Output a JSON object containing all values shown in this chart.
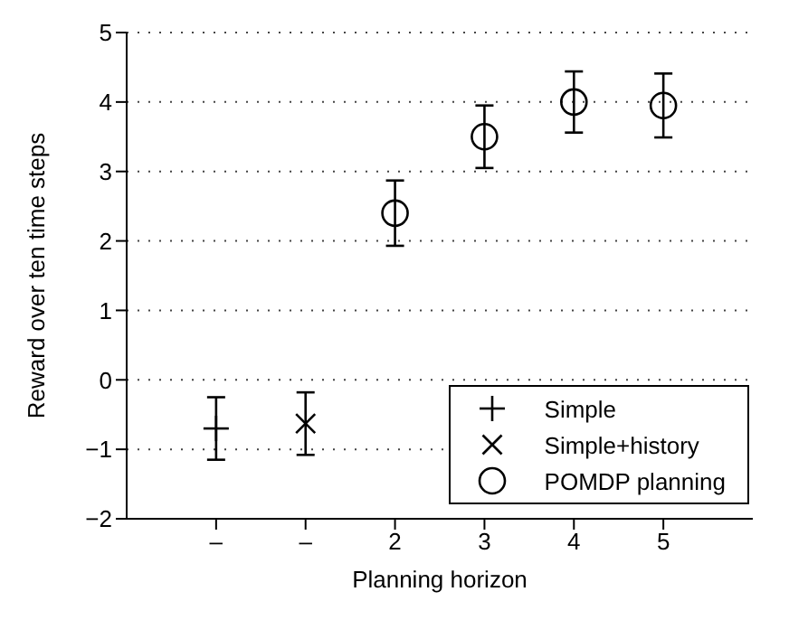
{
  "chart_data": {
    "type": "scatter",
    "xlabel": "Planning horizon",
    "ylabel": "Reward over ten time steps",
    "categories": [
      "–",
      "–",
      "2",
      "3",
      "4",
      "5"
    ],
    "ylim": [
      -2,
      5
    ],
    "yticks": [
      {
        "value": -2,
        "label": "−2"
      },
      {
        "value": -1,
        "label": "−1"
      },
      0,
      1,
      2,
      3,
      4,
      5
    ],
    "grid": "y",
    "legend": "bottom right",
    "series": [
      {
        "name": "Simple",
        "color": "#000000",
        "marker": "plus",
        "values": [
          -0.7,
          null,
          null,
          null,
          null,
          null
        ],
        "errors": [
          0.45,
          null,
          null,
          null,
          null,
          null
        ]
      },
      {
        "name": "Simple+history",
        "color": "#000000",
        "marker": "cross",
        "values": [
          null,
          -0.63,
          null,
          null,
          null,
          null
        ],
        "errors": [
          null,
          0.45,
          null,
          null,
          null,
          null
        ]
      },
      {
        "name": "POMDP planning",
        "color": "#000000",
        "marker": "circle",
        "values": [
          null,
          null,
          2.4,
          3.5,
          4.0,
          3.95
        ],
        "errors": [
          null,
          null,
          0.47,
          0.45,
          0.44,
          0.46
        ]
      }
    ]
  }
}
